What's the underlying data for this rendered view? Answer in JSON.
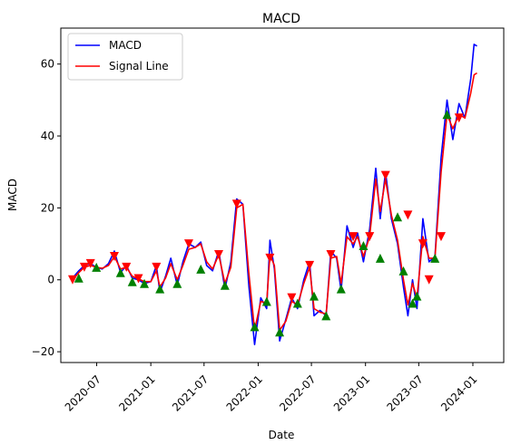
{
  "chart_data": {
    "type": "line",
    "title": "MACD",
    "xlabel": "Date",
    "ylabel": "MACD",
    "xlim": [
      "2020-03-01",
      "2024-04-15"
    ],
    "ylim": [
      -23,
      70
    ],
    "x_ticks": [
      "2020-07-01",
      "2021-01-01",
      "2021-07-01",
      "2022-01-01",
      "2022-07-01",
      "2023-01-01",
      "2023-07-01",
      "2024-01-01"
    ],
    "x_tick_labels": [
      "2020-07",
      "2021-01",
      "2021-07",
      "2022-01",
      "2022-07",
      "2023-01",
      "2023-07",
      "2024-01"
    ],
    "y_ticks": [
      -20,
      0,
      20,
      40,
      60
    ],
    "y_tick_labels": [
      "−20",
      "0",
      "20",
      "40",
      "60"
    ],
    "grid": false,
    "legend_position": "top-left",
    "series": [
      {
        "name": "MACD",
        "color": "#0000ff",
        "points": [
          [
            "2020-04-10",
            0.5
          ],
          [
            "2020-05-01",
            2.5
          ],
          [
            "2020-05-20",
            4.0
          ],
          [
            "2020-06-10",
            4.5
          ],
          [
            "2020-06-30",
            3.5
          ],
          [
            "2020-07-20",
            3.0
          ],
          [
            "2020-08-10",
            4.5
          ],
          [
            "2020-08-30",
            8.0
          ],
          [
            "2020-09-20",
            2.0
          ],
          [
            "2020-10-10",
            4.0
          ],
          [
            "2020-10-30",
            0.5
          ],
          [
            "2020-11-20",
            0.0
          ],
          [
            "2020-12-10",
            -1.0
          ],
          [
            "2021-01-01",
            -0.5
          ],
          [
            "2021-01-20",
            4.0
          ],
          [
            "2021-02-01",
            -3.5
          ],
          [
            "2021-02-20",
            1.0
          ],
          [
            "2021-03-10",
            6.0
          ],
          [
            "2021-04-01",
            -1.5
          ],
          [
            "2021-04-20",
            5.0
          ],
          [
            "2021-05-10",
            10.0
          ],
          [
            "2021-06-01",
            9.0
          ],
          [
            "2021-06-20",
            10.5
          ],
          [
            "2021-07-10",
            4.0
          ],
          [
            "2021-07-30",
            2.5
          ],
          [
            "2021-08-20",
            8.0
          ],
          [
            "2021-09-10",
            -2.5
          ],
          [
            "2021-09-30",
            5.0
          ],
          [
            "2021-10-20",
            22.5
          ],
          [
            "2021-11-10",
            21.0
          ],
          [
            "2021-11-30",
            -1.5
          ],
          [
            "2021-12-20",
            -18.0
          ],
          [
            "2022-01-10",
            -5.0
          ],
          [
            "2022-01-30",
            -8.0
          ],
          [
            "2022-02-10",
            11.0
          ],
          [
            "2022-02-25",
            3.0
          ],
          [
            "2022-03-15",
            -17.0
          ],
          [
            "2022-04-05",
            -11.0
          ],
          [
            "2022-04-25",
            -5.0
          ],
          [
            "2022-05-15",
            -8.0
          ],
          [
            "2022-06-05",
            0.0
          ],
          [
            "2022-06-25",
            5.0
          ],
          [
            "2022-07-10",
            -10.0
          ],
          [
            "2022-07-30",
            -8.5
          ],
          [
            "2022-08-20",
            -10.0
          ],
          [
            "2022-09-05",
            8.0
          ],
          [
            "2022-09-25",
            6.0
          ],
          [
            "2022-10-10",
            -3.0
          ],
          [
            "2022-10-30",
            15.0
          ],
          [
            "2022-11-20",
            9.0
          ],
          [
            "2022-12-05",
            13.0
          ],
          [
            "2022-12-25",
            5.0
          ],
          [
            "2023-01-15",
            14.0
          ],
          [
            "2023-02-05",
            31.0
          ],
          [
            "2023-02-20",
            17.0
          ],
          [
            "2023-03-10",
            30.0
          ],
          [
            "2023-03-30",
            17.0
          ],
          [
            "2023-04-20",
            10.0
          ],
          [
            "2023-05-10",
            -2.0
          ],
          [
            "2023-05-25",
            -10.0
          ],
          [
            "2023-06-10",
            0.0
          ],
          [
            "2023-06-25",
            -8.0
          ],
          [
            "2023-07-15",
            17.0
          ],
          [
            "2023-08-05",
            5.0
          ],
          [
            "2023-08-25",
            6.5
          ],
          [
            "2023-09-15",
            34.0
          ],
          [
            "2023-10-05",
            50.0
          ],
          [
            "2023-10-25",
            39.0
          ],
          [
            "2023-11-15",
            49.0
          ],
          [
            "2023-12-05",
            45.0
          ],
          [
            "2023-12-25",
            56.0
          ],
          [
            "2024-01-05",
            65.5
          ],
          [
            "2024-01-15",
            65.0
          ]
        ]
      },
      {
        "name": "Signal Line",
        "color": "#ff0000",
        "points": [
          [
            "2020-04-10",
            0.0
          ],
          [
            "2020-05-01",
            2.0
          ],
          [
            "2020-05-20",
            3.5
          ],
          [
            "2020-06-10",
            4.0
          ],
          [
            "2020-06-30",
            3.5
          ],
          [
            "2020-07-20",
            3.2
          ],
          [
            "2020-08-10",
            4.0
          ],
          [
            "2020-08-30",
            6.5
          ],
          [
            "2020-09-20",
            3.0
          ],
          [
            "2020-10-10",
            3.5
          ],
          [
            "2020-10-30",
            1.0
          ],
          [
            "2020-11-20",
            0.3
          ],
          [
            "2020-12-10",
            -0.5
          ],
          [
            "2021-01-01",
            -0.5
          ],
          [
            "2021-01-20",
            2.5
          ],
          [
            "2021-02-01",
            -2.0
          ],
          [
            "2021-02-20",
            0.5
          ],
          [
            "2021-03-10",
            4.5
          ],
          [
            "2021-04-01",
            0.0
          ],
          [
            "2021-04-20",
            4.0
          ],
          [
            "2021-05-10",
            8.5
          ],
          [
            "2021-06-01",
            9.0
          ],
          [
            "2021-06-20",
            10.0
          ],
          [
            "2021-07-10",
            5.0
          ],
          [
            "2021-07-30",
            3.0
          ],
          [
            "2021-08-20",
            7.0
          ],
          [
            "2021-09-10",
            -1.0
          ],
          [
            "2021-09-30",
            3.5
          ],
          [
            "2021-10-20",
            20.0
          ],
          [
            "2021-11-10",
            21.0
          ],
          [
            "2021-11-30",
            2.0
          ],
          [
            "2021-12-20",
            -14.0
          ],
          [
            "2022-01-10",
            -6.0
          ],
          [
            "2022-01-30",
            -6.5
          ],
          [
            "2022-02-10",
            7.0
          ],
          [
            "2022-02-25",
            4.0
          ],
          [
            "2022-03-15",
            -14.0
          ],
          [
            "2022-04-05",
            -11.5
          ],
          [
            "2022-04-25",
            -6.0
          ],
          [
            "2022-05-15",
            -7.0
          ],
          [
            "2022-06-05",
            -1.0
          ],
          [
            "2022-06-25",
            3.5
          ],
          [
            "2022-07-10",
            -8.0
          ],
          [
            "2022-07-30",
            -9.0
          ],
          [
            "2022-08-20",
            -9.5
          ],
          [
            "2022-09-05",
            6.0
          ],
          [
            "2022-09-25",
            6.5
          ],
          [
            "2022-10-10",
            -1.0
          ],
          [
            "2022-10-30",
            12.0
          ],
          [
            "2022-11-20",
            10.0
          ],
          [
            "2022-12-05",
            12.0
          ],
          [
            "2022-12-25",
            6.5
          ],
          [
            "2023-01-15",
            12.0
          ],
          [
            "2023-02-05",
            28.0
          ],
          [
            "2023-02-20",
            19.0
          ],
          [
            "2023-03-10",
            28.0
          ],
          [
            "2023-03-30",
            18.0
          ],
          [
            "2023-04-20",
            11.0
          ],
          [
            "2023-05-10",
            0.0
          ],
          [
            "2023-05-25",
            -7.0
          ],
          [
            "2023-06-10",
            -1.0
          ],
          [
            "2023-06-25",
            -5.0
          ],
          [
            "2023-07-15",
            12.0
          ],
          [
            "2023-08-05",
            6.0
          ],
          [
            "2023-08-25",
            6.0
          ],
          [
            "2023-09-15",
            30.0
          ],
          [
            "2023-10-05",
            46.0
          ],
          [
            "2023-10-25",
            42.0
          ],
          [
            "2023-11-15",
            46.0
          ],
          [
            "2023-12-05",
            45.0
          ],
          [
            "2023-12-25",
            52.0
          ],
          [
            "2024-01-05",
            57.0
          ],
          [
            "2024-01-15",
            57.5
          ]
        ]
      }
    ],
    "markers": {
      "sell": {
        "shape": "triangle-down",
        "color": "#ff0000",
        "points": [
          [
            "2020-04-10",
            0.0
          ],
          [
            "2020-05-20",
            3.5
          ],
          [
            "2020-06-10",
            4.5
          ],
          [
            "2020-08-30",
            6.5
          ],
          [
            "2020-10-10",
            3.5
          ],
          [
            "2020-11-20",
            0.3
          ],
          [
            "2021-01-20",
            3.5
          ],
          [
            "2021-05-10",
            10.0
          ],
          [
            "2021-08-20",
            7.0
          ],
          [
            "2021-10-20",
            21.0
          ],
          [
            "2022-02-10",
            6.0
          ],
          [
            "2022-04-25",
            -5.0
          ],
          [
            "2022-06-25",
            4.0
          ],
          [
            "2022-09-05",
            7.0
          ],
          [
            "2022-11-20",
            12.0
          ],
          [
            "2023-01-15",
            12.0
          ],
          [
            "2023-03-10",
            29.0
          ],
          [
            "2023-05-25",
            18.0
          ],
          [
            "2023-07-15",
            10.0
          ],
          [
            "2023-08-05",
            0.0
          ],
          [
            "2023-09-15",
            12.0
          ],
          [
            "2023-11-15",
            45.0
          ]
        ]
      },
      "buy": {
        "shape": "triangle-up",
        "color": "#008000",
        "points": [
          [
            "2020-05-01",
            0.5
          ],
          [
            "2020-06-30",
            3.5
          ],
          [
            "2020-09-20",
            2.0
          ],
          [
            "2020-10-30",
            -0.5
          ],
          [
            "2020-12-10",
            -1.0
          ],
          [
            "2021-02-01",
            -2.5
          ],
          [
            "2021-04-01",
            -1.0
          ],
          [
            "2021-06-20",
            3.0
          ],
          [
            "2021-09-10",
            -1.5
          ],
          [
            "2021-12-20",
            -13.0
          ],
          [
            "2022-01-30",
            -6.0
          ],
          [
            "2022-03-15",
            -14.5
          ],
          [
            "2022-05-15",
            -6.5
          ],
          [
            "2022-07-10",
            -4.5
          ],
          [
            "2022-08-20",
            -10.0
          ],
          [
            "2022-10-10",
            -2.5
          ],
          [
            "2022-12-25",
            9.5
          ],
          [
            "2023-02-20",
            6.0
          ],
          [
            "2023-04-20",
            17.5
          ],
          [
            "2023-05-10",
            2.5
          ],
          [
            "2023-06-10",
            -6.5
          ],
          [
            "2023-06-25",
            -4.5
          ],
          [
            "2023-08-25",
            6.0
          ],
          [
            "2023-10-05",
            46.0
          ]
        ]
      }
    }
  }
}
